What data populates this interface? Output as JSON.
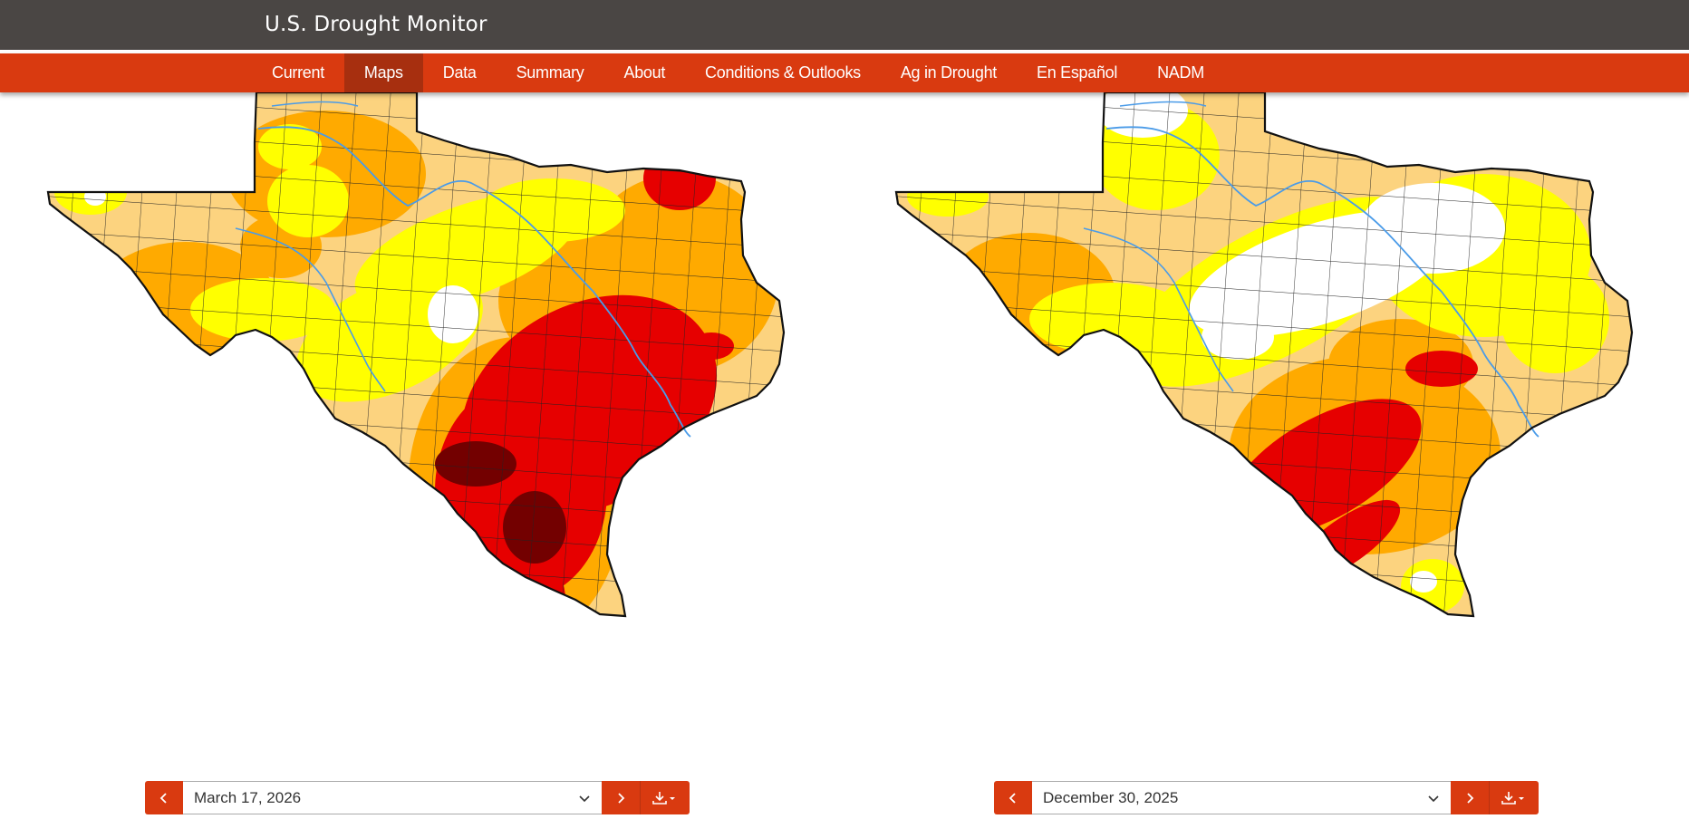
{
  "header": {
    "title": "U.S. Drought Monitor"
  },
  "nav": {
    "items": [
      {
        "label": "Current"
      },
      {
        "label": "Maps",
        "active": true
      },
      {
        "label": "Data"
      },
      {
        "label": "Summary"
      },
      {
        "label": "About"
      },
      {
        "label": "Conditions & Outlooks"
      },
      {
        "label": "Ag in Drought"
      },
      {
        "label": "En Español"
      },
      {
        "label": "NADM"
      }
    ]
  },
  "maps": {
    "left": {
      "date": "March 17, 2026"
    },
    "right": {
      "date": "December 30, 2025"
    }
  },
  "colors": {
    "header_bg": "#4a4644",
    "nav_bg": "#d93a10",
    "nav_active": "#a72f0f",
    "none": "#ffffff",
    "D0": "#ffff00",
    "D1": "#fcd37f",
    "D2": "#ffaa00",
    "D3": "#e60000",
    "D4": "#730000",
    "county_line": "#222222",
    "river": "#4a9be8"
  },
  "icons": {
    "prev": "chevron-left-icon",
    "next": "chevron-right-icon",
    "dropdown": "chevron-down-icon",
    "download": "download-icon"
  }
}
